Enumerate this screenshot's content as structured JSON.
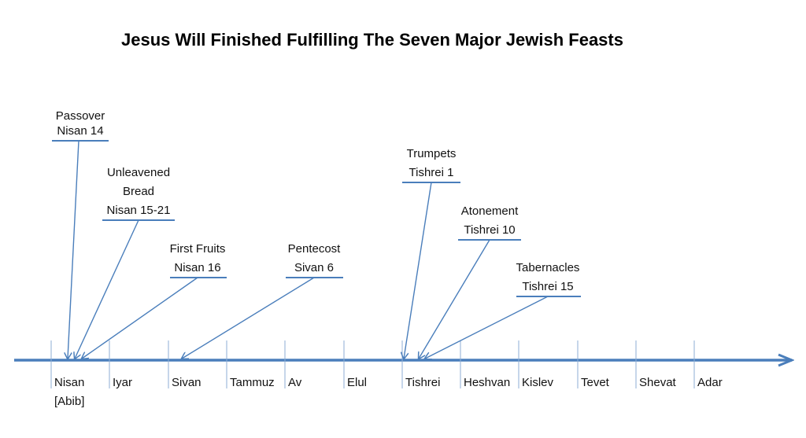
{
  "title": "Jesus Will Finished Fulfilling The Seven Major Jewish Feasts",
  "colors": {
    "line": "#4a7ebb",
    "text": "#111111"
  },
  "months": [
    {
      "name": "Nisan",
      "alt": "[Abib]"
    },
    {
      "name": "Iyar"
    },
    {
      "name": "Sivan"
    },
    {
      "name": "Tammuz"
    },
    {
      "name": "Av"
    },
    {
      "name": "Elul"
    },
    {
      "name": "Tishrei"
    },
    {
      "name": "Heshvan"
    },
    {
      "name": "Kislev"
    },
    {
      "name": "Tevet"
    },
    {
      "name": "Shevat"
    },
    {
      "name": "Adar"
    }
  ],
  "feasts": [
    {
      "name": "Passover",
      "date": "Nisan 14"
    },
    {
      "name": "Unleavened",
      "name2": "Bread",
      "date": "Nisan 15-21"
    },
    {
      "name": "First Fruits",
      "date": "Nisan 16"
    },
    {
      "name": "Pentecost",
      "date": "Sivan 6"
    },
    {
      "name": "Trumpets",
      "date": "Tishrei 1"
    },
    {
      "name": "Atonement",
      "date": "Tishrei 10"
    },
    {
      "name": "Tabernacles",
      "date": "Tishrei 15"
    }
  ]
}
